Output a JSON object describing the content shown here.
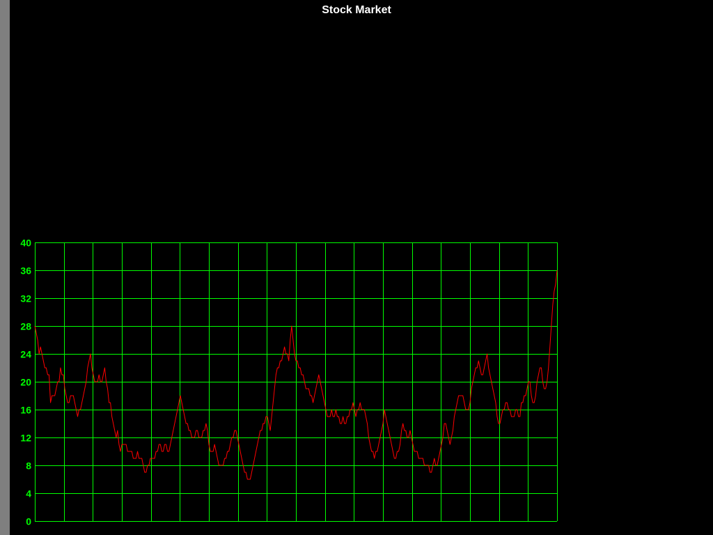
{
  "window": {
    "title": "Stock Market"
  },
  "colors": {
    "background": "#000000",
    "grid": "#00ff00",
    "line": "#ff0000",
    "tick_label": "#00ff00",
    "title": "#ffffff",
    "side_strip": "#7f7f7f"
  },
  "chart_data": {
    "type": "line",
    "title": "Stock Market",
    "xlabel": "",
    "ylabel": "",
    "ylim": [
      0,
      40
    ],
    "yticks": [
      "0",
      "4",
      "8",
      "12",
      "16",
      "20",
      "24",
      "28",
      "32",
      "36",
      "40"
    ],
    "grid": true,
    "vertical_grid_count": 19,
    "series": [
      {
        "values": [
          28,
          27,
          26,
          24,
          25,
          24,
          23,
          22,
          22,
          21,
          21,
          17,
          18,
          18,
          18,
          19,
          20,
          20,
          22,
          21,
          21,
          19,
          18,
          17,
          17,
          18,
          18,
          18,
          17,
          16,
          15,
          16,
          16,
          17,
          18,
          19,
          20,
          22,
          23,
          24,
          22,
          21,
          20,
          20,
          20,
          21,
          20,
          20,
          21,
          22,
          20,
          19,
          17,
          17,
          15,
          14,
          13,
          12,
          13,
          11,
          10,
          11,
          11,
          11,
          11,
          10,
          10,
          10,
          10,
          9,
          9,
          9,
          10,
          9,
          9,
          9,
          8,
          7,
          7,
          8,
          8,
          9,
          9,
          9,
          9,
          10,
          10,
          11,
          11,
          10,
          10,
          11,
          11,
          10,
          10,
          11,
          12,
          13,
          14,
          15,
          16,
          17,
          18,
          17,
          16,
          15,
          14,
          14,
          13,
          13,
          12,
          12,
          12,
          13,
          13,
          12,
          12,
          12,
          13,
          13,
          14,
          13,
          11,
          10,
          10,
          10,
          11,
          10,
          9,
          8,
          8,
          8,
          8,
          9,
          9,
          10,
          10,
          11,
          12,
          12,
          13,
          13,
          12,
          11,
          10,
          9,
          8,
          7,
          7,
          6,
          6,
          6,
          7,
          8,
          9,
          10,
          11,
          12,
          13,
          13,
          14,
          14,
          15,
          15,
          14,
          13,
          15,
          17,
          19,
          21,
          22,
          22,
          23,
          23,
          24,
          25,
          24,
          24,
          23,
          26,
          28,
          26,
          24,
          23,
          23,
          22,
          22,
          21,
          21,
          20,
          19,
          19,
          19,
          18,
          18,
          17,
          18,
          19,
          20,
          21,
          20,
          19,
          18,
          17,
          16,
          15,
          15,
          15,
          16,
          15,
          15,
          16,
          15,
          15,
          14,
          14,
          15,
          14,
          14,
          15,
          15,
          16,
          16,
          17,
          16,
          15,
          16,
          16,
          17,
          16,
          16,
          16,
          15,
          14,
          12,
          11,
          10,
          10,
          9,
          10,
          10,
          11,
          12,
          13,
          14,
          16,
          15,
          14,
          13,
          12,
          11,
          10,
          9,
          9,
          10,
          10,
          11,
          13,
          14,
          13,
          13,
          12,
          12,
          13,
          12,
          11,
          10,
          10,
          10,
          9,
          9,
          9,
          9,
          8,
          8,
          8,
          8,
          7,
          7,
          8,
          9,
          8,
          8,
          9,
          10,
          11,
          12,
          14,
          14,
          13,
          12,
          11,
          12,
          13,
          15,
          16,
          17,
          18,
          18,
          18,
          18,
          17,
          16,
          16,
          16,
          17,
          19,
          20,
          21,
          22,
          22,
          23,
          22,
          21,
          21,
          22,
          23,
          24,
          22,
          21,
          20,
          19,
          18,
          17,
          15,
          14,
          14,
          15,
          16,
          16,
          17,
          17,
          16,
          16,
          15,
          15,
          15,
          16,
          16,
          15,
          15,
          17,
          17,
          18,
          18,
          19,
          20,
          20,
          18,
          17,
          17,
          18,
          20,
          21,
          22,
          22,
          20,
          19,
          19,
          20,
          22,
          25,
          28,
          31,
          33,
          34,
          36
        ]
      }
    ]
  }
}
